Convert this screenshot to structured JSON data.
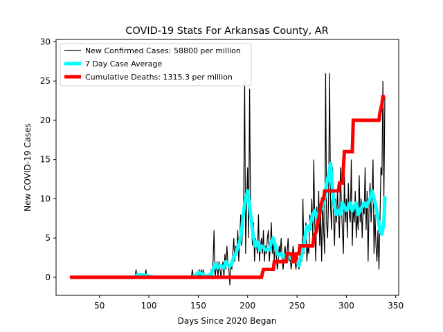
{
  "chart_data": {
    "type": "line",
    "title": "COVID-19 Stats For Arkansas County, AR",
    "xlabel": "Days Since 2020 Began",
    "ylabel": "New COVID-19 Cases",
    "xlim": [
      6,
      353
    ],
    "ylim": [
      -2.3,
      30.3
    ],
    "xticks": [
      50,
      100,
      150,
      200,
      250,
      300,
      350
    ],
    "yticks": [
      0,
      5,
      10,
      15,
      20,
      25,
      30
    ],
    "grid": false,
    "legend_position": "upper-left",
    "series": [
      {
        "name": "New Confirmed Cases: 58800 per million",
        "color": "#000000",
        "kind": "daily",
        "points": [
          [
            20,
            0
          ],
          [
            86,
            0
          ],
          [
            87,
            1
          ],
          [
            88,
            0
          ],
          [
            96,
            0
          ],
          [
            97,
            1
          ],
          [
            98,
            0
          ],
          [
            143,
            0
          ],
          [
            144,
            1
          ],
          [
            145,
            0
          ],
          [
            150,
            0
          ],
          [
            151,
            1
          ],
          [
            152,
            0
          ],
          [
            153,
            1
          ],
          [
            154,
            0
          ],
          [
            155,
            1
          ],
          [
            156,
            0
          ],
          [
            162,
            0
          ],
          [
            163,
            1
          ],
          [
            164,
            0
          ],
          [
            165,
            2
          ],
          [
            166,
            6
          ],
          [
            167,
            0
          ],
          [
            168,
            1
          ],
          [
            169,
            2
          ],
          [
            170,
            0
          ],
          [
            171,
            2
          ],
          [
            172,
            1
          ],
          [
            173,
            0
          ],
          [
            174,
            1
          ],
          [
            175,
            2
          ],
          [
            176,
            0
          ],
          [
            177,
            3
          ],
          [
            178,
            1
          ],
          [
            179,
            4
          ],
          [
            180,
            2
          ],
          [
            181,
            1
          ],
          [
            182,
            -1
          ],
          [
            183,
            2
          ],
          [
            184,
            1
          ],
          [
            185,
            3
          ],
          [
            186,
            5
          ],
          [
            187,
            2
          ],
          [
            188,
            4
          ],
          [
            189,
            3
          ],
          [
            190,
            6
          ],
          [
            191,
            2
          ],
          [
            192,
            5
          ],
          [
            193,
            8
          ],
          [
            194,
            4
          ],
          [
            195,
            6
          ],
          [
            196,
            10
          ],
          [
            197,
            25
          ],
          [
            198,
            3
          ],
          [
            199,
            10
          ],
          [
            200,
            14
          ],
          [
            201,
            5
          ],
          [
            202,
            24
          ],
          [
            203,
            8
          ],
          [
            204,
            6
          ],
          [
            205,
            4
          ],
          [
            206,
            7
          ],
          [
            207,
            2
          ],
          [
            208,
            5
          ],
          [
            209,
            4
          ],
          [
            210,
            3
          ],
          [
            211,
            8
          ],
          [
            212,
            2
          ],
          [
            213,
            4
          ],
          [
            214,
            5
          ],
          [
            215,
            3
          ],
          [
            216,
            6
          ],
          [
            217,
            2
          ],
          [
            218,
            4
          ],
          [
            219,
            3
          ],
          [
            220,
            5
          ],
          [
            221,
            6
          ],
          [
            222,
            2
          ],
          [
            223,
            4
          ],
          [
            224,
            7
          ],
          [
            225,
            3
          ],
          [
            226,
            5
          ],
          [
            227,
            2
          ],
          [
            228,
            4
          ],
          [
            229,
            3
          ],
          [
            230,
            1
          ],
          [
            231,
            2
          ],
          [
            232,
            4
          ],
          [
            233,
            3
          ],
          [
            234,
            5
          ],
          [
            235,
            2
          ],
          [
            236,
            1
          ],
          [
            237,
            3
          ],
          [
            238,
            4
          ],
          [
            239,
            2
          ],
          [
            240,
            3
          ],
          [
            241,
            5
          ],
          [
            242,
            2
          ],
          [
            243,
            3
          ],
          [
            244,
            1
          ],
          [
            245,
            2
          ],
          [
            246,
            4
          ],
          [
            247,
            3
          ],
          [
            248,
            2
          ],
          [
            249,
            1
          ],
          [
            250,
            3
          ],
          [
            251,
            2
          ],
          [
            252,
            1
          ],
          [
            253,
            3
          ],
          [
            254,
            4
          ],
          [
            255,
            2
          ],
          [
            256,
            10
          ],
          [
            257,
            3
          ],
          [
            258,
            5
          ],
          [
            259,
            7
          ],
          [
            260,
            2
          ],
          [
            261,
            4
          ],
          [
            262,
            3
          ],
          [
            263,
            8
          ],
          [
            264,
            6
          ],
          [
            265,
            10
          ],
          [
            266,
            5
          ],
          [
            267,
            15
          ],
          [
            268,
            7
          ],
          [
            269,
            2
          ],
          [
            270,
            9
          ],
          [
            271,
            6
          ],
          [
            272,
            11
          ],
          [
            273,
            4
          ],
          [
            274,
            8
          ],
          [
            275,
            2
          ],
          [
            276,
            10
          ],
          [
            277,
            6
          ],
          [
            278,
            3
          ],
          [
            279,
            26
          ],
          [
            280,
            7
          ],
          [
            281,
            5
          ],
          [
            282,
            10
          ],
          [
            283,
            26
          ],
          [
            284,
            9
          ],
          [
            285,
            6
          ],
          [
            286,
            14
          ],
          [
            287,
            8
          ],
          [
            288,
            4
          ],
          [
            289,
            10
          ],
          [
            290,
            7
          ],
          [
            291,
            11
          ],
          [
            292,
            8
          ],
          [
            293,
            5
          ],
          [
            294,
            14
          ],
          [
            295,
            9
          ],
          [
            296,
            6
          ],
          [
            297,
            3
          ],
          [
            298,
            13
          ],
          [
            299,
            7
          ],
          [
            300,
            10
          ],
          [
            301,
            5
          ],
          [
            302,
            12
          ],
          [
            303,
            8
          ],
          [
            304,
            7
          ],
          [
            305,
            15
          ],
          [
            306,
            4
          ],
          [
            307,
            9
          ],
          [
            308,
            7
          ],
          [
            309,
            11
          ],
          [
            310,
            5
          ],
          [
            311,
            8
          ],
          [
            312,
            6
          ],
          [
            313,
            13
          ],
          [
            314,
            7
          ],
          [
            315,
            10
          ],
          [
            316,
            5
          ],
          [
            317,
            9
          ],
          [
            318,
            8
          ],
          [
            319,
            14
          ],
          [
            320,
            6
          ],
          [
            321,
            11
          ],
          [
            322,
            2
          ],
          [
            323,
            9
          ],
          [
            324,
            12
          ],
          [
            325,
            7
          ],
          [
            326,
            10
          ],
          [
            327,
            15
          ],
          [
            328,
            3
          ],
          [
            329,
            8
          ],
          [
            330,
            4
          ],
          [
            331,
            2
          ],
          [
            332,
            6
          ],
          [
            333,
            1
          ],
          [
            334,
            7
          ],
          [
            335,
            14
          ],
          [
            336,
            13
          ],
          [
            337,
            25
          ],
          [
            338,
            10
          ],
          [
            339,
            23
          ]
        ]
      },
      {
        "name": "7 Day Case Average",
        "color": "#00ffff",
        "kind": "average",
        "points": [
          [
            20,
            0
          ],
          [
            86,
            0
          ],
          [
            88,
            0.3
          ],
          [
            96,
            0.3
          ],
          [
            100,
            0.1
          ],
          [
            105,
            0
          ],
          [
            145,
            0
          ],
          [
            150,
            0.6
          ],
          [
            155,
            0.4
          ],
          [
            158,
            0.1
          ],
          [
            163,
            0.4
          ],
          [
            166,
            1.3
          ],
          [
            168,
            1.7
          ],
          [
            170,
            1.2
          ],
          [
            172,
            1.5
          ],
          [
            174,
            1.4
          ],
          [
            176,
            1.2
          ],
          [
            178,
            2
          ],
          [
            180,
            1.6
          ],
          [
            182,
            1.4
          ],
          [
            184,
            1.8
          ],
          [
            186,
            2.6
          ],
          [
            188,
            3
          ],
          [
            190,
            3.8
          ],
          [
            192,
            4.5
          ],
          [
            194,
            6
          ],
          [
            196,
            8.5
          ],
          [
            198,
            10
          ],
          [
            200,
            11
          ],
          [
            202,
            9
          ],
          [
            204,
            7
          ],
          [
            206,
            5
          ],
          [
            208,
            4
          ],
          [
            210,
            4.5
          ],
          [
            212,
            3.5
          ],
          [
            214,
            4
          ],
          [
            216,
            3.8
          ],
          [
            218,
            3.5
          ],
          [
            220,
            3.6
          ],
          [
            222,
            3.5
          ],
          [
            224,
            4.5
          ],
          [
            226,
            5
          ],
          [
            228,
            4
          ],
          [
            230,
            3
          ],
          [
            232,
            2.8
          ],
          [
            234,
            3
          ],
          [
            236,
            2.6
          ],
          [
            238,
            2.8
          ],
          [
            240,
            2.5
          ],
          [
            242,
            2.8
          ],
          [
            244,
            2.4
          ],
          [
            246,
            2.5
          ],
          [
            248,
            2.3
          ],
          [
            250,
            2
          ],
          [
            252,
            1.5
          ],
          [
            254,
            2.5
          ],
          [
            256,
            3.5
          ],
          [
            258,
            5
          ],
          [
            260,
            6.5
          ],
          [
            262,
            6
          ],
          [
            264,
            7
          ],
          [
            266,
            8
          ],
          [
            268,
            8.5
          ],
          [
            270,
            7.5
          ],
          [
            272,
            8
          ],
          [
            274,
            8.5
          ],
          [
            276,
            9
          ],
          [
            278,
            10
          ],
          [
            280,
            12
          ],
          [
            282,
            13
          ],
          [
            284,
            14.5
          ],
          [
            286,
            11
          ],
          [
            288,
            9
          ],
          [
            290,
            8
          ],
          [
            292,
            8.5
          ],
          [
            294,
            8
          ],
          [
            296,
            9.5
          ],
          [
            298,
            9
          ],
          [
            300,
            8.5
          ],
          [
            302,
            9
          ],
          [
            304,
            9.5
          ],
          [
            306,
            8.5
          ],
          [
            308,
            9
          ],
          [
            310,
            9.5
          ],
          [
            312,
            8
          ],
          [
            314,
            8.5
          ],
          [
            316,
            9
          ],
          [
            318,
            9.5
          ],
          [
            320,
            9
          ],
          [
            322,
            9.5
          ],
          [
            324,
            10
          ],
          [
            326,
            11
          ],
          [
            328,
            10
          ],
          [
            330,
            9
          ],
          [
            332,
            7.5
          ],
          [
            334,
            6
          ],
          [
            336,
            5.5
          ],
          [
            338,
            7
          ],
          [
            339,
            10.3
          ]
        ]
      },
      {
        "name": "Cumulative Deaths: 1315.3 per million",
        "color": "#ff0000",
        "kind": "step",
        "points": [
          [
            20,
            0
          ],
          [
            214,
            0
          ],
          [
            216,
            1
          ],
          [
            226,
            1
          ],
          [
            227,
            2
          ],
          [
            239,
            2
          ],
          [
            240,
            3
          ],
          [
            245,
            3
          ],
          [
            246,
            2
          ],
          [
            248,
            2
          ],
          [
            249,
            3
          ],
          [
            252,
            3
          ],
          [
            253,
            4
          ],
          [
            266,
            4
          ],
          [
            267,
            5
          ],
          [
            270,
            6
          ],
          [
            271,
            7
          ],
          [
            273,
            8
          ],
          [
            274,
            9
          ],
          [
            276,
            10
          ],
          [
            277,
            10
          ],
          [
            278,
            11
          ],
          [
            292,
            11
          ],
          [
            293,
            12
          ],
          [
            296,
            12
          ],
          [
            297,
            14
          ],
          [
            298,
            16
          ],
          [
            306,
            16
          ],
          [
            307,
            20
          ],
          [
            333,
            20
          ],
          [
            334,
            21
          ],
          [
            336,
            22
          ],
          [
            337,
            23
          ],
          [
            339,
            23
          ]
        ]
      }
    ]
  }
}
